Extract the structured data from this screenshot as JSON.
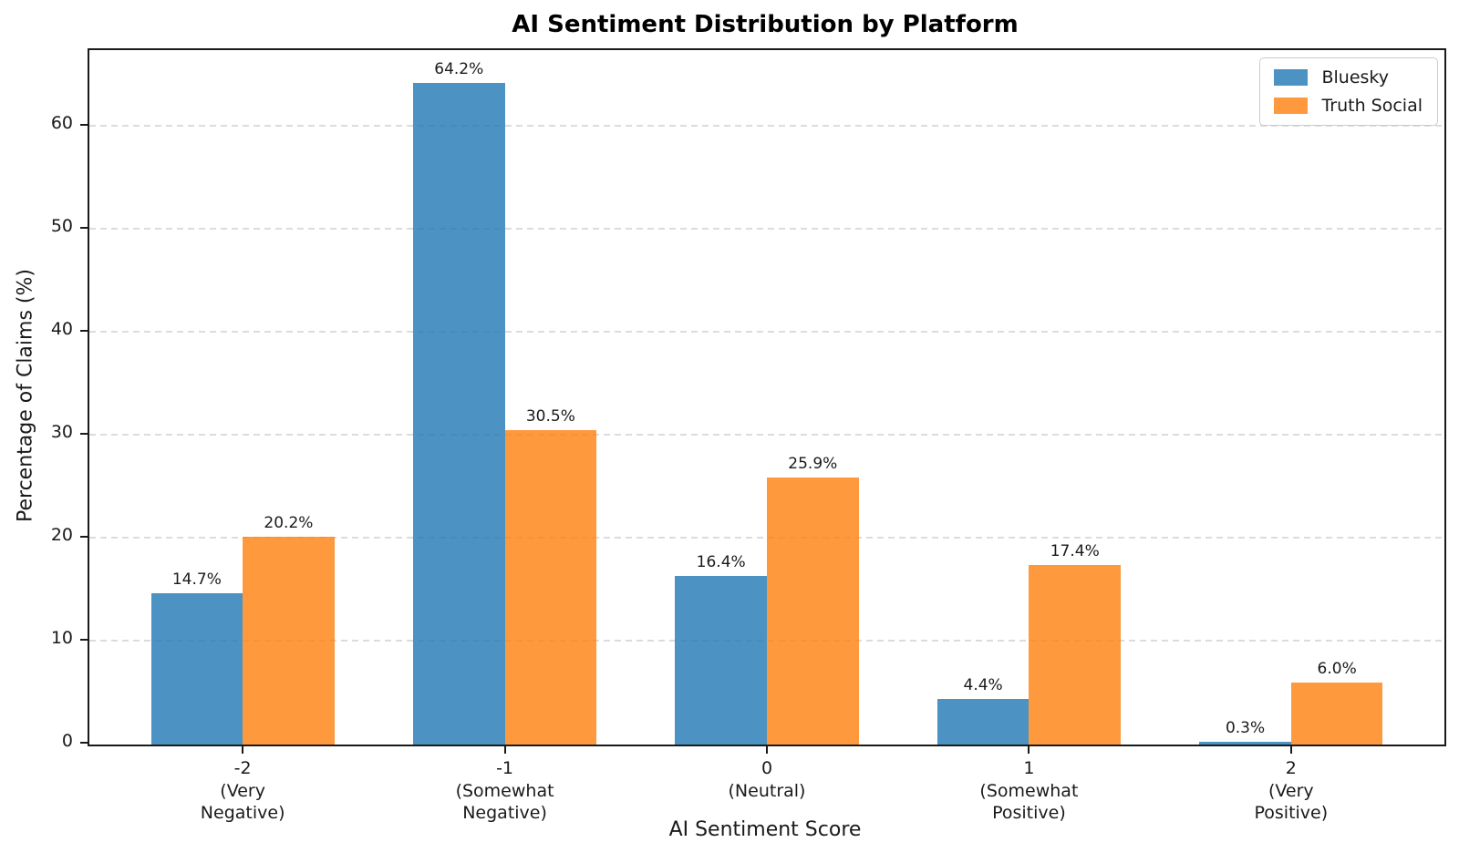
{
  "chart_data": {
    "type": "bar",
    "title": "AI Sentiment Distribution by Platform",
    "xlabel": "AI Sentiment Score",
    "ylabel": "Percentage of Claims (%)",
    "categories": [
      "-2\n(Very\nNegative)",
      "-1\n(Somewhat\nNegative)",
      "0\n(Neutral)",
      "1\n(Somewhat\nPositive)",
      "2\n(Very\nPositive)"
    ],
    "series": [
      {
        "name": "Bluesky",
        "color": "rgba(31,119,180,0.8)",
        "values": [
          14.7,
          64.2,
          16.4,
          4.4,
          0.3
        ]
      },
      {
        "name": "Truth Social",
        "color": "rgba(255,127,14,0.8)",
        "values": [
          20.2,
          30.5,
          25.9,
          17.4,
          6.0
        ]
      }
    ],
    "value_label_format": "{v}%",
    "ylim": [
      0,
      67.4
    ],
    "yticks": [
      0,
      10,
      20,
      30,
      40,
      50,
      60
    ],
    "xlim": [
      -0.585,
      4.585
    ],
    "bar_width": 0.35,
    "grid": "horizontal-dashed",
    "legend_position": "upper right"
  }
}
